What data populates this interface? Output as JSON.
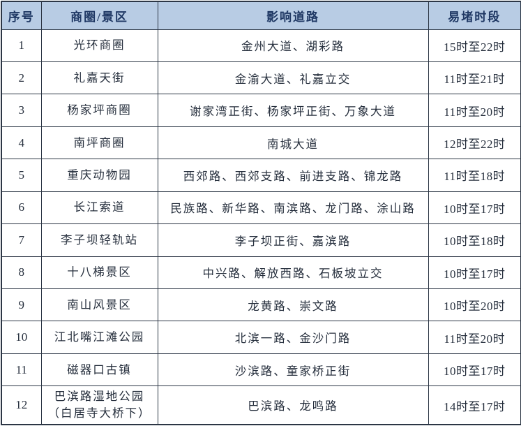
{
  "table": {
    "title_semantic": "重庆商圈景区易堵路段时段表",
    "headers": [
      "序号",
      "商圈/景区",
      "影响道路",
      "易堵时段"
    ],
    "rows": [
      {
        "no": "1",
        "area": "光环商圈",
        "roads": "金州大道、湖彩路",
        "time": "15时至22时"
      },
      {
        "no": "2",
        "area": "礼嘉天街",
        "roads": "金渝大道、礼嘉立交",
        "time": "11时至21时"
      },
      {
        "no": "3",
        "area": "杨家坪商圈",
        "roads": "谢家湾正街、杨家坪正街、万象大道",
        "time": "11时至20时"
      },
      {
        "no": "4",
        "area": "南坪商圈",
        "roads": "南城大道",
        "time": "12时至22时"
      },
      {
        "no": "5",
        "area": "重庆动物园",
        "roads": "西郊路、西郊支路、前进支路、锦龙路",
        "time": "11时至18时"
      },
      {
        "no": "6",
        "area": "长江索道",
        "roads": "民族路、新华路、南滨路、龙门路、涂山路",
        "time": "10时至17时"
      },
      {
        "no": "7",
        "area": "李子坝轻轨站",
        "roads": "李子坝正街、嘉滨路",
        "time": "10时至18时"
      },
      {
        "no": "8",
        "area": "十八梯景区",
        "roads": "中兴路、解放西路、石板坡立交",
        "time": "10时至17时"
      },
      {
        "no": "9",
        "area": "南山风景区",
        "roads": "龙黄路、崇文路",
        "time": "10时至20时"
      },
      {
        "no": "10",
        "area": "江北嘴江滩公园",
        "roads": "北滨一路、金沙门路",
        "time": "11时至20时"
      },
      {
        "no": "11",
        "area": "磁器口古镇",
        "roads": "沙滨路、童家桥正街",
        "time": "10时至17时"
      },
      {
        "no": "12",
        "area": "巴滨路湿地公园\n（白居寺大桥下）",
        "roads": "巴滨路、龙鸣路",
        "time": "14时至17时"
      }
    ]
  },
  "colors": {
    "header_bg": "#b8cce4",
    "header_text": "#1f3864",
    "body_text": "#262f3d",
    "border": "#2c3645"
  }
}
